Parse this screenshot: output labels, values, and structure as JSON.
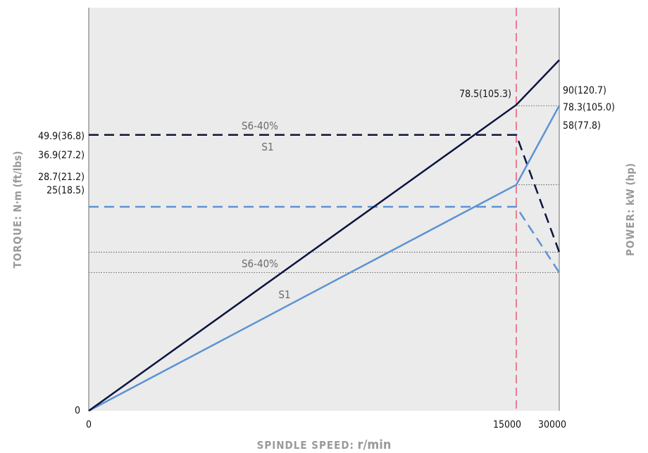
{
  "chart_data": {
    "type": "line",
    "x_axis": {
      "title_prefix": "SPINDLE SPEED:",
      "title_unit": "r/min",
      "ticks": [
        "0",
        "15000",
        "30000"
      ]
    },
    "y_axis_left": {
      "title_prefix": "TORQUE:",
      "title_unit": "N·m (ft/lbs)",
      "ticks": [
        "0",
        "49.9(36.8)",
        "36.9(27.2)",
        "28.7(21.2)",
        "25(18.5)"
      ]
    },
    "y_axis_right": {
      "title_prefix": "POWER:",
      "title_unit": "kW (hp)",
      "ticks": [
        "90(120.7)",
        "78.3(105.0)",
        "58(77.8)"
      ]
    },
    "rated_speed_marker": "15000",
    "series": [
      {
        "name": "S6-40%",
        "kind": "power",
        "style": "solid",
        "color": "#0d1440",
        "points": [
          {
            "x": 0,
            "y": 0,
            "label": "0"
          },
          {
            "x": 15000,
            "y": 78.5,
            "label": "78.5(105.3)"
          },
          {
            "x": 30000,
            "y": 90,
            "label": "90(120.7)"
          }
        ]
      },
      {
        "name": "S1",
        "kind": "power",
        "style": "solid",
        "color": "#5b93d3",
        "points": [
          {
            "x": 0,
            "y": 0
          },
          {
            "x": 15000,
            "y": 58,
            "label": "58(77.8)"
          },
          {
            "x": 30000,
            "y": 78.3,
            "label": "78.3(105.0)"
          }
        ]
      },
      {
        "name": "S6-40%",
        "kind": "torque",
        "style": "dashed",
        "color": "#0d1440",
        "points": [
          {
            "x": 0,
            "y": 49.9,
            "label": "49.9(36.8)"
          },
          {
            "x": 15000,
            "y": 49.9
          },
          {
            "x": 30000,
            "y": 28.7,
            "label": "28.7(21.2)"
          }
        ]
      },
      {
        "name": "S1",
        "kind": "torque",
        "style": "dashed",
        "color": "#5b93d3",
        "points": [
          {
            "x": 0,
            "y": 36.9,
            "label": "36.9(27.2)"
          },
          {
            "x": 15000,
            "y": 36.9
          },
          {
            "x": 30000,
            "y": 25,
            "label": "25(18.5)"
          }
        ]
      }
    ],
    "colors": {
      "plot_background": "#ebebeb",
      "axis": "#9a9a9a",
      "marker": "#e85a78",
      "guide": "#444444"
    }
  }
}
